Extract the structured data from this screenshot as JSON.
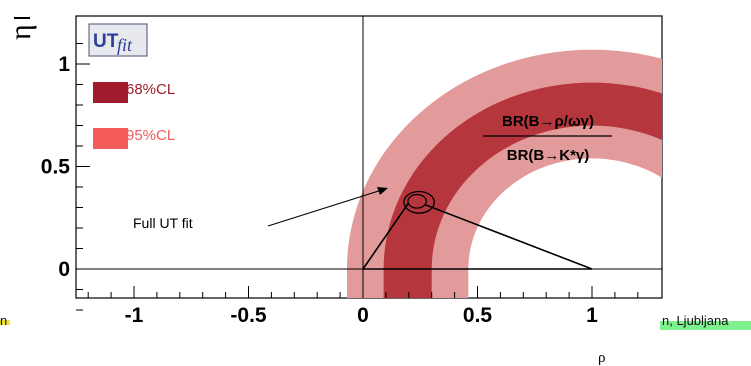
{
  "chart_data": {
    "type": "contour",
    "xlabel": "ρ",
    "ylabel": "η",
    "xlim": [
      -1.25,
      1.25
    ],
    "ylim": [
      -0.27,
      1.2
    ],
    "xticks": [
      {
        "value": -1,
        "label": "-1"
      },
      {
        "value": -0.5,
        "label": "-0.5"
      },
      {
        "value": 0,
        "label": "0"
      },
      {
        "value": 0.5,
        "label": "0.5"
      },
      {
        "value": 1,
        "label": "1"
      }
    ],
    "yticks": [
      {
        "value": 0,
        "label": "0"
      },
      {
        "value": 0.5,
        "label": "0.5"
      },
      {
        "value": 1,
        "label": "1"
      }
    ],
    "logo": "UTfit",
    "legend": [
      {
        "label": "68%CL",
        "color": "#a01c2c"
      },
      {
        "label": "95%CL",
        "color": "#f35a5a"
      }
    ],
    "constraint": {
      "label_numerator": "BR(B→ρ/ωγ)",
      "label_denominator": "BR(B→K*γ)",
      "center": [
        1,
        0
      ],
      "bands": [
        {
          "level": "95%CL",
          "r_inner": 0.54,
          "r_outer": 1.07,
          "color": "#e39a9a"
        },
        {
          "level": "68%CL",
          "r_inner": 0.7,
          "r_outer": 0.91,
          "color": "#b5363d"
        }
      ]
    },
    "full_fit": {
      "label": "Full UT fit",
      "center": [
        0.21,
        0.34
      ],
      "rx": 0.04,
      "ry": 0.033,
      "color": "#b5363d"
    },
    "triangle": [
      [
        0,
        0
      ],
      [
        1,
        0
      ],
      [
        0.21,
        0.34
      ]
    ],
    "annotation": "Full UT fit"
  },
  "footer": {
    "left": "n",
    "right": "n, Ljubljana"
  }
}
